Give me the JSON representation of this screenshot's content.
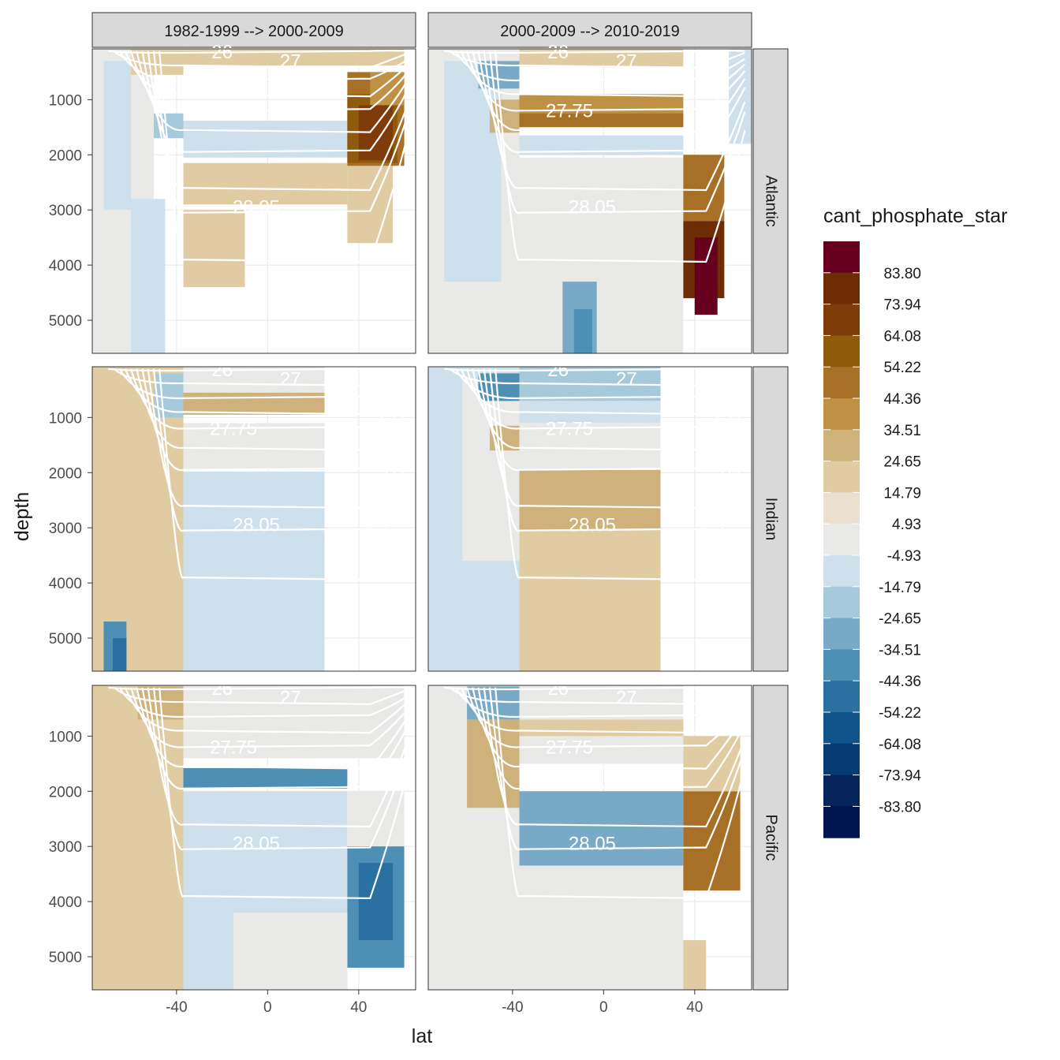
{
  "chart_data": {
    "type": "heatmap",
    "title": "",
    "xlabel": "lat",
    "ylabel": "depth",
    "x_ticks": [
      -40,
      0,
      40
    ],
    "y_ticks": [
      1000,
      2000,
      3000,
      4000,
      5000
    ],
    "xlim": [
      -77,
      65
    ],
    "ylim": [
      5600,
      80
    ],
    "y_reversed": true,
    "col_facets": [
      "1982-1999 --> 2000-2009",
      "2000-2009 --> 2010-2019"
    ],
    "row_facets": [
      "Atlantic",
      "Indian",
      "Pacific"
    ],
    "legend": {
      "title": "cant_phosphate_star",
      "position": "right",
      "labels": [
        "83.80",
        "73.94",
        "64.08",
        "54.22",
        "44.36",
        "34.51",
        "24.65",
        "14.79",
        "4.93",
        "-4.93",
        "-14.79",
        "-24.65",
        "-34.51",
        "-44.36",
        "-54.22",
        "-64.08",
        "-73.94",
        "-83.80"
      ],
      "colors": [
        "#67001f",
        "#6e2c05",
        "#7f3b08",
        "#8f5a0b",
        "#a87026",
        "#bf9144",
        "#ceb17b",
        "#e0cba3",
        "#ebe0cf",
        "#e9eae8",
        "#cde0ec",
        "#a7c9dc",
        "#78aac7",
        "#4d8fb5",
        "#2a71a1",
        "#0e5389",
        "#073b73",
        "#05245c",
        "#031550"
      ]
    },
    "isopycnal_labels": [
      "26",
      "27",
      "27.75",
      "28.05"
    ],
    "panels": [
      {
        "col": 0,
        "row": 0,
        "cells": [
          [
            -77,
            -50,
            80,
            5600,
            "#e9eae8"
          ],
          [
            -72,
            -60,
            300,
            3000,
            "#cde0ec"
          ],
          [
            -60,
            -45,
            2800,
            5600,
            "#cde0ec"
          ],
          [
            -37,
            35,
            2150,
            2900,
            "#e0cba3"
          ],
          [
            35,
            55,
            2150,
            3600,
            "#e0cba3"
          ],
          [
            -37,
            -10,
            3000,
            4400,
            "#e0cba3"
          ],
          [
            -37,
            35,
            1380,
            2050,
            "#cde0ec"
          ],
          [
            -60,
            -37,
            80,
            550,
            "#e0cba3"
          ],
          [
            -37,
            10,
            80,
            380,
            "#e0cba3"
          ],
          [
            10,
            60,
            80,
            380,
            "#e0cba3"
          ],
          [
            -50,
            -37,
            1250,
            1700,
            "#a7c9dc"
          ],
          [
            35,
            60,
            500,
            2200,
            "#a87026"
          ],
          [
            35,
            57,
            900,
            2150,
            "#8f5a0b"
          ],
          [
            40,
            55,
            1100,
            2100,
            "#7f3b08"
          ],
          [
            45,
            60,
            500,
            1100,
            "#bf9144"
          ]
        ]
      },
      {
        "col": 1,
        "row": 0,
        "cells": [
          [
            -77,
            -37,
            80,
            5600,
            "#e9eae8"
          ],
          [
            -70,
            -45,
            300,
            4300,
            "#cde0ec"
          ],
          [
            -37,
            35,
            900,
            1300,
            "#bf9144"
          ],
          [
            -37,
            35,
            1250,
            1500,
            "#a87026"
          ],
          [
            -37,
            35,
            1650,
            2000,
            "#cde0ec"
          ],
          [
            -37,
            35,
            2050,
            5600,
            "#e9eae8"
          ],
          [
            -37,
            35,
            80,
            400,
            "#e0cba3"
          ],
          [
            -50,
            -37,
            1000,
            1600,
            "#ceb17b"
          ],
          [
            -55,
            -37,
            300,
            800,
            "#78aac7"
          ],
          [
            35,
            53,
            2000,
            3200,
            "#a87026"
          ],
          [
            35,
            53,
            3200,
            4600,
            "#6e2c05"
          ],
          [
            40,
            50,
            3500,
            4900,
            "#67001f"
          ],
          [
            -18,
            -3,
            4300,
            5600,
            "#78aac7"
          ],
          [
            -13,
            -5,
            4800,
            5600,
            "#4d8fb5"
          ],
          [
            55,
            65,
            80,
            1800,
            "#cde0ec"
          ]
        ]
      },
      {
        "col": 0,
        "row": 1,
        "cells": [
          [
            -77,
            -37,
            80,
            5600,
            "#e0cba3"
          ],
          [
            -37,
            25,
            1980,
            5600,
            "#cde0ec"
          ],
          [
            -37,
            25,
            1100,
            1950,
            "#e9eae8"
          ],
          [
            -37,
            25,
            80,
            550,
            "#e9eae8"
          ],
          [
            -37,
            25,
            550,
            950,
            "#ceb17b"
          ],
          [
            -50,
            -37,
            200,
            1000,
            "#a7c9dc"
          ],
          [
            -72,
            -62,
            4700,
            5600,
            "#4d8fb5"
          ],
          [
            -68,
            -62,
            5000,
            5600,
            "#2a71a1"
          ]
        ]
      },
      {
        "col": 1,
        "row": 1,
        "cells": [
          [
            -77,
            -37,
            80,
            5600,
            "#cde0ec"
          ],
          [
            -62,
            -37,
            300,
            3600,
            "#e9eae8"
          ],
          [
            -37,
            25,
            1950,
            3050,
            "#ceb17b"
          ],
          [
            -37,
            25,
            3050,
            5600,
            "#e0cba3"
          ],
          [
            -37,
            25,
            80,
            700,
            "#a7c9dc"
          ],
          [
            -37,
            25,
            700,
            1100,
            "#cde0ec"
          ],
          [
            -37,
            25,
            1100,
            1950,
            "#e9eae8"
          ],
          [
            -50,
            -37,
            1150,
            1600,
            "#ceb17b"
          ],
          [
            -55,
            -37,
            200,
            700,
            "#4d8fb5"
          ]
        ]
      },
      {
        "col": 0,
        "row": 2,
        "cells": [
          [
            -77,
            -37,
            80,
            5600,
            "#e0cba3"
          ],
          [
            -37,
            35,
            2000,
            5600,
            "#cde0ec"
          ],
          [
            -37,
            35,
            1580,
            1950,
            "#4d8fb5"
          ],
          [
            35,
            60,
            2000,
            3000,
            "#e9eae8"
          ],
          [
            35,
            60,
            3000,
            5200,
            "#4d8fb5"
          ],
          [
            40,
            55,
            3300,
            4700,
            "#2a71a1"
          ],
          [
            -37,
            60,
            80,
            1400,
            "#e9eae8"
          ],
          [
            -57,
            -37,
            100,
            700,
            "#ceb17b"
          ],
          [
            -10,
            10,
            4000,
            5600,
            "#cde0ec"
          ],
          [
            -15,
            35,
            4200,
            5600,
            "#e9eae8"
          ]
        ]
      },
      {
        "col": 1,
        "row": 2,
        "cells": [
          [
            -77,
            -37,
            80,
            5600,
            "#e9eae8"
          ],
          [
            -60,
            -37,
            700,
            2300,
            "#ceb17b"
          ],
          [
            -37,
            35,
            2000,
            3350,
            "#78aac7"
          ],
          [
            -37,
            35,
            3350,
            5600,
            "#e9eae8"
          ],
          [
            -37,
            35,
            80,
            1500,
            "#e9eae8"
          ],
          [
            -37,
            35,
            700,
            1000,
            "#e0cba3"
          ],
          [
            35,
            60,
            2000,
            3800,
            "#a87026"
          ],
          [
            35,
            60,
            1000,
            2000,
            "#e0cba3"
          ],
          [
            -60,
            -37,
            100,
            700,
            "#78aac7"
          ],
          [
            35,
            45,
            4700,
            5600,
            "#e0cba3"
          ]
        ]
      }
    ]
  }
}
